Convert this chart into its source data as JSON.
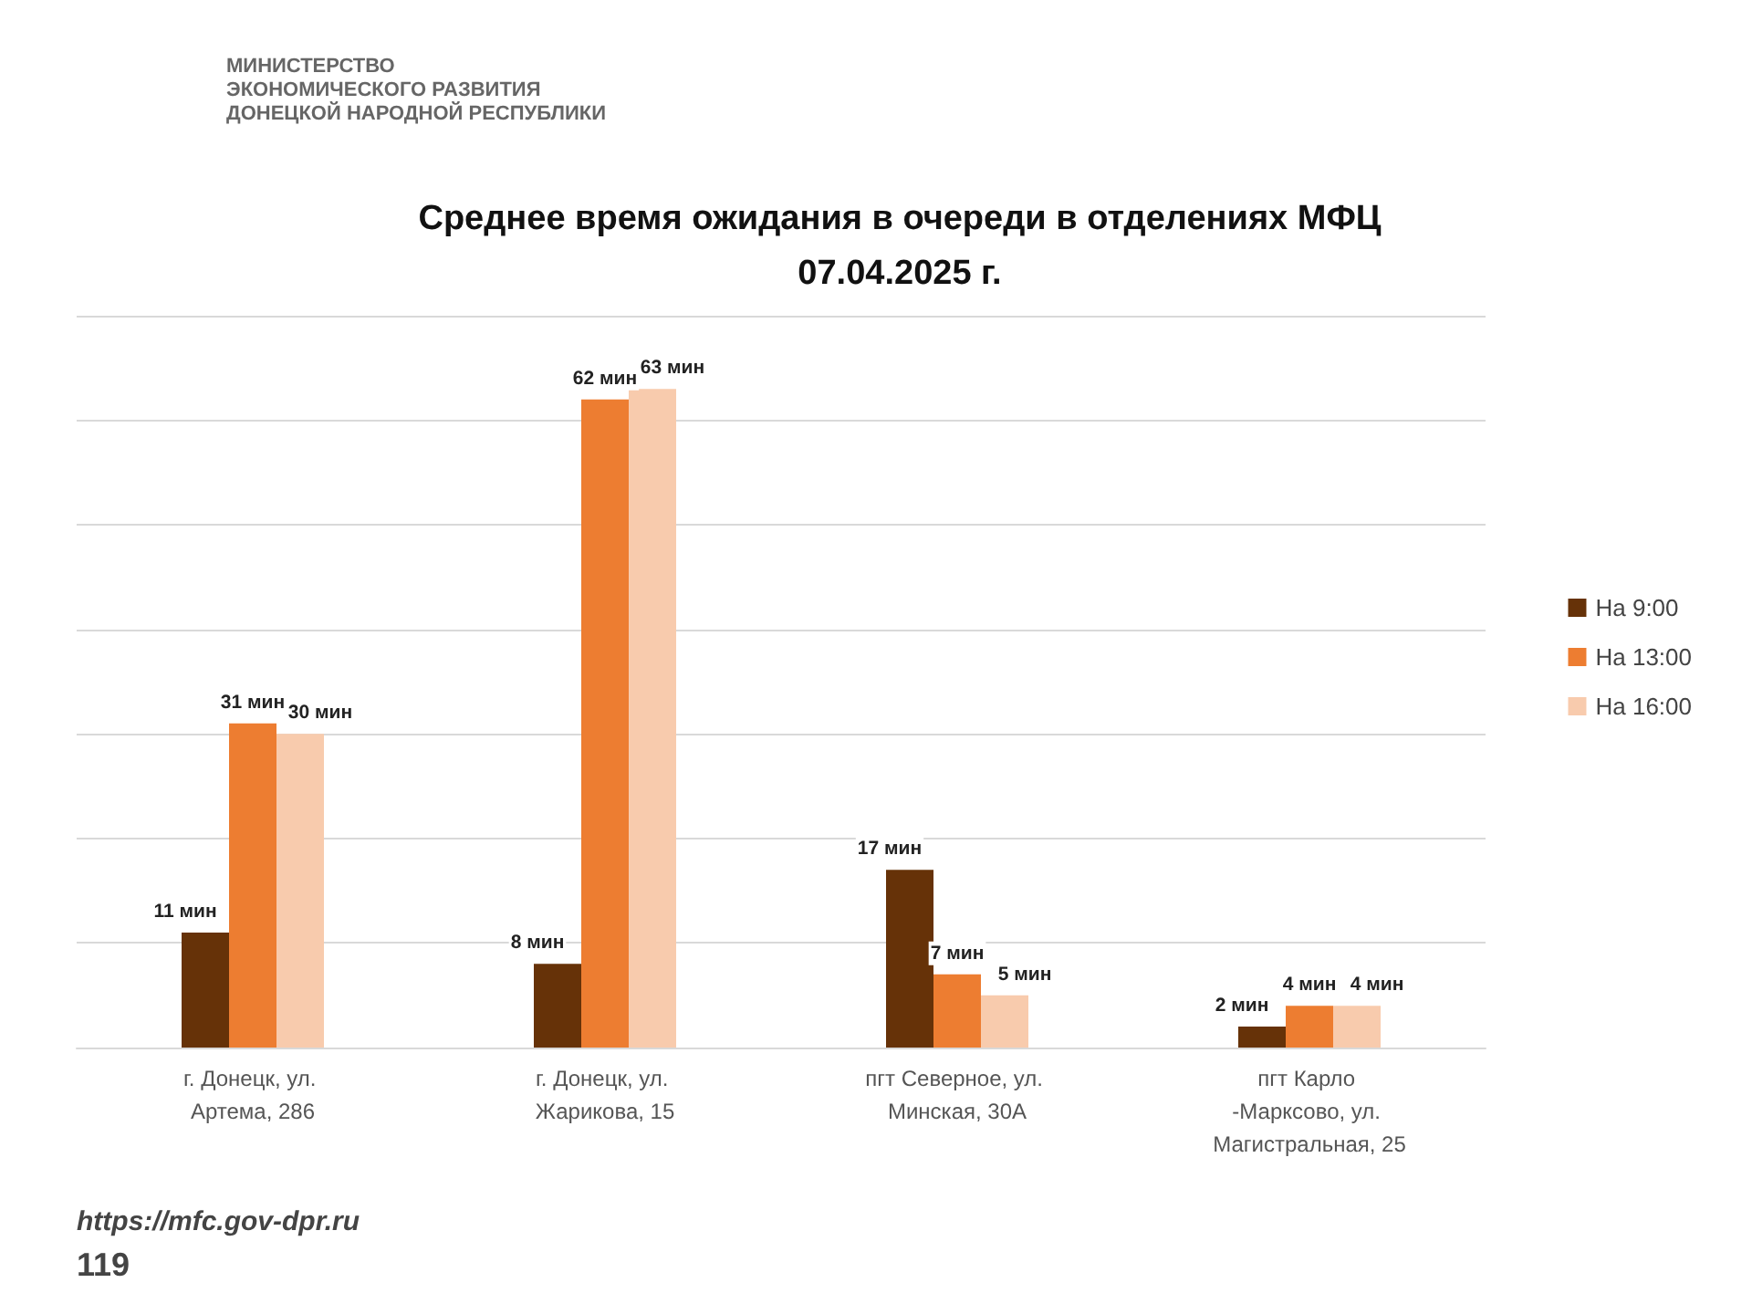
{
  "chart_data": {
    "type": "bar",
    "title": "Среднее время ожидания в очереди в отделениях МФЦ\n07.04.2025 г.",
    "categories": [
      "г. Донецк, ул. Артема, 286",
      "г. Донецк, ул. Жарикова, 15",
      "пгт Северное, ул. Минская, 30А",
      "пгт Карло -Марксово, ул. Магистральная, 25"
    ],
    "series": [
      {
        "name": "На 9:00",
        "color": "#663208",
        "values": [
          11,
          8,
          17,
          2
        ],
        "value_labels": [
          "11 мин",
          "8 мин",
          "17 мин",
          "2 мин"
        ]
      },
      {
        "name": "На 13:00",
        "color": "#ed7d31",
        "values": [
          31,
          62,
          7,
          4
        ],
        "value_labels": [
          "31 мин",
          "62 мин",
          "7 мин",
          "4 мин"
        ]
      },
      {
        "name": "На 16:00",
        "color": "#f8cbad",
        "values": [
          30,
          63,
          5,
          4
        ],
        "value_labels": [
          "30 мин",
          "63 мин",
          "5 мин",
          "4 мин"
        ]
      }
    ],
    "ylim": [
      0,
      70
    ],
    "yticks": [
      {
        "value": 0,
        "label": null
      },
      {
        "value": 10,
        "label": null
      },
      {
        "value": 20,
        "label": null
      },
      {
        "value": 30,
        "label": null
      },
      {
        "value": 40,
        "label": null
      },
      {
        "value": 50,
        "label": null
      },
      {
        "value": 60,
        "label": null
      },
      {
        "value": 70,
        "label": null
      }
    ],
    "grid": "y",
    "tick_labels": "x",
    "legend": "right",
    "annotations": [
      "МИНИСТЕРСТВО\nЭКОНОМИЧЕСКОГО РАЗВИТИЯ\nДОНЕЦКОЙ НАРОДНОЙ РЕСПУБЛИКИ",
      "https://mfc.gov-dpr.ru",
      "119"
    ]
  }
}
